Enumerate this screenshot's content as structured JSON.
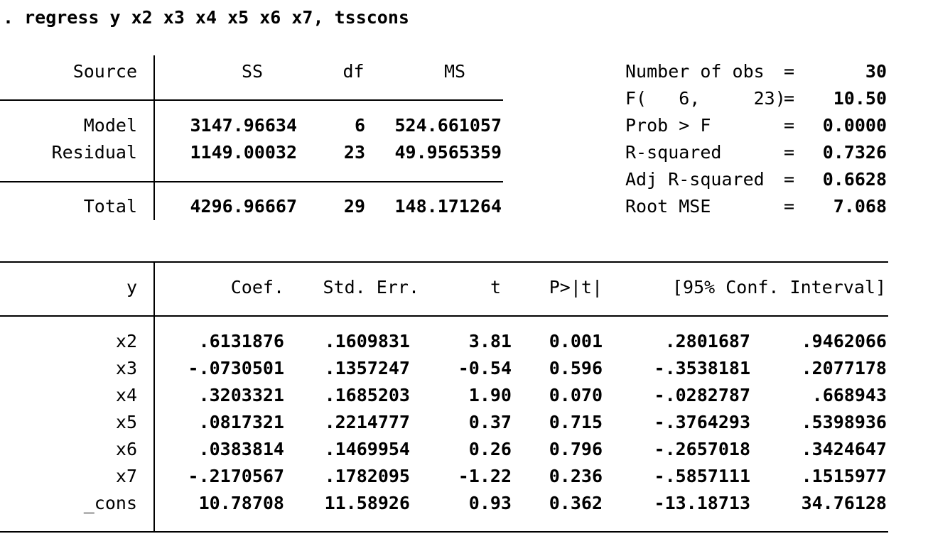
{
  "command": ". regress y x2 x3 x4 x5 x6 x7, tsscons",
  "anova": {
    "headers": {
      "source": "Source",
      "ss": "SS",
      "df": "df",
      "ms": "MS"
    },
    "rows": [
      {
        "source": "Model",
        "ss": "3147.96634",
        "df": "6",
        "ms": "524.661057"
      },
      {
        "source": "Residual",
        "ss": "1149.00032",
        "df": "23",
        "ms": "49.9565359"
      }
    ],
    "total": {
      "source": "Total",
      "ss": "4296.96667",
      "df": "29",
      "ms": "148.171264"
    }
  },
  "stats": [
    {
      "label": "Number of obs",
      "eq": "=",
      "value": "30"
    },
    {
      "label": "F(   6,     23)",
      "eq": "=",
      "value": "10.50"
    },
    {
      "label": "Prob > F",
      "eq": "=",
      "value": "0.0000"
    },
    {
      "label": "R-squared",
      "eq": "=",
      "value": "0.7326"
    },
    {
      "label": "Adj R-squared",
      "eq": "=",
      "value": "0.6628"
    },
    {
      "label": "Root MSE",
      "eq": "=",
      "value": "7.068"
    }
  ],
  "coef_table": {
    "headers": {
      "var": "y",
      "coef": "Coef.",
      "se": "Std. Err.",
      "t": "t",
      "p": "P>|t|",
      "ci": "[95% Conf. Interval]"
    },
    "rows": [
      {
        "var": "x2",
        "coef": ".6131876",
        "se": ".1609831",
        "t": "3.81",
        "p": "0.001",
        "ci_low": ".2801687",
        "ci_high": ".9462066"
      },
      {
        "var": "x3",
        "coef": "-.0730501",
        "se": ".1357247",
        "t": "-0.54",
        "p": "0.596",
        "ci_low": "-.3538181",
        "ci_high": ".2077178"
      },
      {
        "var": "x4",
        "coef": ".3203321",
        "se": ".1685203",
        "t": "1.90",
        "p": "0.070",
        "ci_low": "-.0282787",
        "ci_high": ".668943"
      },
      {
        "var": "x5",
        "coef": ".0817321",
        "se": ".2214777",
        "t": "0.37",
        "p": "0.715",
        "ci_low": "-.3764293",
        "ci_high": ".5398936"
      },
      {
        "var": "x6",
        "coef": ".0383814",
        "se": ".1469954",
        "t": "0.26",
        "p": "0.796",
        "ci_low": "-.2657018",
        "ci_high": ".3424647"
      },
      {
        "var": "x7",
        "coef": "-.2170567",
        "se": ".1782095",
        "t": "-1.22",
        "p": "0.236",
        "ci_low": "-.5857111",
        "ci_high": ".1515977"
      },
      {
        "var": "_cons",
        "coef": "10.78708",
        "se": "11.58926",
        "t": "0.93",
        "p": "0.362",
        "ci_low": "-13.18713",
        "ci_high": "34.76128"
      }
    ]
  }
}
